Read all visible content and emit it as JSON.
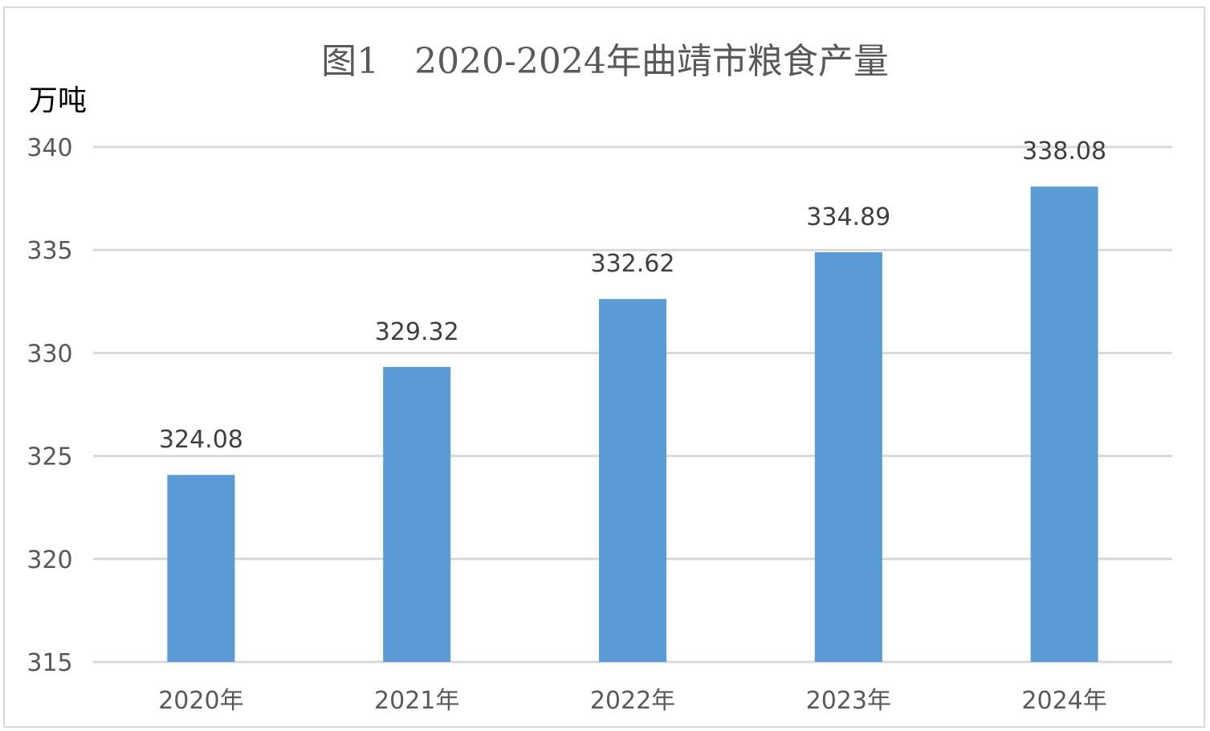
{
  "chart_data": {
    "type": "bar",
    "title": "图1　2020-2024年曲靖市粮食产量",
    "ylabel": "万吨",
    "xlabel": "",
    "categories": [
      "2020年",
      "2021年",
      "2022年",
      "2023年",
      "2024年"
    ],
    "values": [
      324.08,
      329.32,
      332.62,
      334.89,
      338.08
    ],
    "data_labels": [
      "324.08",
      "329.32",
      "332.62",
      "334.89",
      "338.08"
    ],
    "ylim": [
      315,
      340
    ],
    "yticks": [
      315,
      320,
      325,
      330,
      335,
      340
    ],
    "ytick_labels": [
      "315",
      "320",
      "325",
      "330",
      "335",
      "340"
    ],
    "grid": true,
    "legend": "none",
    "bar_color": "#5b9bd5",
    "grid_color": "#d9d9d9"
  }
}
